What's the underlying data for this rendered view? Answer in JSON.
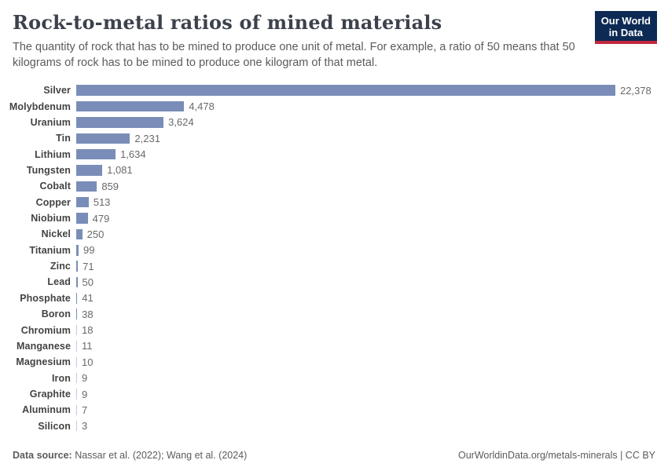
{
  "header": {
    "title": "Rock-to-metal ratios of mined materials",
    "subtitle": "The quantity of rock that has to be mined to produce one unit of metal. For example, a ratio of 50 means that 50 kilograms of rock has to be mined to produce one kilogram of that metal.",
    "logo": {
      "line1": "Our World",
      "line2": "in Data"
    }
  },
  "chart_data": {
    "type": "bar",
    "orientation": "horizontal",
    "title": "Rock-to-metal ratios of mined materials",
    "xlabel": "",
    "ylabel": "",
    "xlim": [
      0,
      22378
    ],
    "grid": false,
    "legend": false,
    "categories": [
      "Silver",
      "Molybdenum",
      "Uranium",
      "Tin",
      "Lithium",
      "Tungsten",
      "Cobalt",
      "Copper",
      "Niobium",
      "Nickel",
      "Titanium",
      "Zinc",
      "Lead",
      "Phosphate",
      "Boron",
      "Chromium",
      "Manganese",
      "Magnesium",
      "Iron",
      "Graphite",
      "Aluminum",
      "Silicon"
    ],
    "values": [
      22378,
      4478,
      3624,
      2231,
      1634,
      1081,
      859,
      513,
      479,
      250,
      99,
      71,
      50,
      41,
      38,
      18,
      11,
      10,
      9,
      9,
      7,
      3
    ],
    "value_labels": [
      "22,378",
      "4,478",
      "3,624",
      "2,231",
      "1,634",
      "1,081",
      "859",
      "513",
      "479",
      "250",
      "99",
      "71",
      "50",
      "41",
      "38",
      "18",
      "11",
      "10",
      "9",
      "9",
      "7",
      "3"
    ]
  },
  "footer": {
    "datasource_label": "Data source:",
    "datasource_value": " Nassar et al. (2022); Wang et al. (2024)",
    "attribution": "OurWorldinData.org/metals-minerals | CC BY"
  },
  "colors": {
    "bar": "#7a8db8",
    "title": "#3c414b",
    "subtitle": "#5b5b5b",
    "value_label": "#696969",
    "logo_navy": "#0c2a54",
    "logo_red": "#c1273c",
    "background": "#ffffff"
  }
}
